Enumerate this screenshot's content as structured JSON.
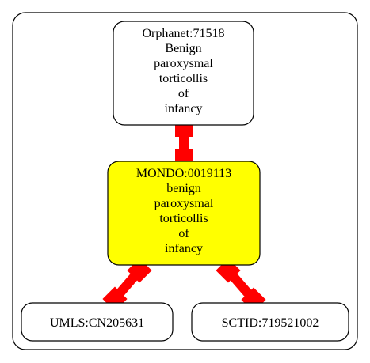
{
  "colors": {
    "background": "#ffffff",
    "cluster_border": "#000000",
    "node_border": "#000000",
    "node_fill": "#ffffff",
    "highlight_fill": "#ffff00",
    "edge": "#ff0000"
  },
  "nodes": {
    "orphanet": {
      "lines": [
        "Orphanet:71518",
        "Benign",
        "paroxysmal",
        "torticollis",
        "of",
        "infancy"
      ]
    },
    "mondo": {
      "lines": [
        "MONDO:0019113",
        "benign",
        "paroxysmal",
        "torticollis",
        "of",
        "infancy"
      ]
    },
    "umls": {
      "lines": [
        "UMLS:CN205631"
      ]
    },
    "sctid": {
      "lines": [
        "SCTID:719521002"
      ]
    }
  }
}
